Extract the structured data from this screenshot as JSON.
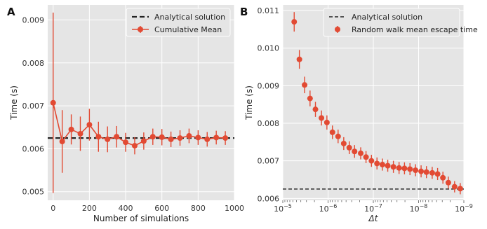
{
  "colors": {
    "background": "#e5e5e5",
    "grid": "#ffffff",
    "series": "#e24a33",
    "reference": "#222222"
  },
  "chart_data": [
    {
      "panel_label": "A",
      "type": "line",
      "xlabel": "Number of simulations",
      "ylabel": "Time (s)",
      "xlim": [
        -30,
        1000
      ],
      "ylim": [
        0.0048,
        0.00935
      ],
      "xticks": [
        0,
        200,
        400,
        600,
        800,
        1000
      ],
      "xtick_labels": [
        "0",
        "200",
        "400",
        "600",
        "800",
        "1000"
      ],
      "yticks": [
        0.005,
        0.006,
        0.007,
        0.008,
        0.009
      ],
      "ytick_labels": [
        "0.005",
        "0.006",
        "0.007",
        "0.008",
        "0.009"
      ],
      "grid": true,
      "legend_position": "top-right",
      "reference_line": {
        "name": "Analytical solution",
        "value": 0.00625,
        "style": "dashed"
      },
      "series": [
        {
          "name": "Cumulative Mean",
          "x": [
            0,
            50,
            100,
            150,
            200,
            250,
            300,
            350,
            400,
            450,
            500,
            550,
            600,
            650,
            700,
            750,
            800,
            850,
            900,
            950
          ],
          "y": [
            0.00707,
            0.00617,
            0.00645,
            0.00635,
            0.00656,
            0.00628,
            0.00622,
            0.00628,
            0.00615,
            0.00607,
            0.00618,
            0.00628,
            0.00627,
            0.00622,
            0.00625,
            0.0063,
            0.00626,
            0.00622,
            0.00626,
            0.00625
          ],
          "yerr": [
            0.0021,
            0.00073,
            0.00035,
            0.0004,
            0.00037,
            0.00035,
            0.0003,
            0.00025,
            0.00022,
            0.0002,
            0.0002,
            0.00019,
            0.00019,
            0.00018,
            0.00018,
            0.00017,
            0.00017,
            0.00017,
            0.00016,
            0.00016
          ]
        }
      ]
    },
    {
      "panel_label": "B",
      "type": "scatter",
      "xlabel": "Δt",
      "ylabel": "Time (s)",
      "x_scale": "log",
      "x_inverted": true,
      "xlim": [
        1e-05,
        1e-09
      ],
      "ylim": [
        0.00595,
        0.01115
      ],
      "xticks": [
        1e-05,
        1e-06,
        1e-07,
        1e-08,
        1e-09
      ],
      "xtick_labels": [
        {
          "base": "10",
          "exp": "−5"
        },
        {
          "base": "10",
          "exp": "−6"
        },
        {
          "base": "10",
          "exp": "−7"
        },
        {
          "base": "10",
          "exp": "−8"
        },
        {
          "base": "10",
          "exp": "−9"
        }
      ],
      "yticks": [
        0.006,
        0.007,
        0.008,
        0.009,
        0.01,
        0.011
      ],
      "ytick_labels": [
        "0.006",
        "0.007",
        "0.008",
        "0.009",
        "0.010",
        "0.011"
      ],
      "grid": true,
      "legend_position": "top-right",
      "reference_line": {
        "name": "Analytical solution",
        "value": 0.00625,
        "style": "dashed"
      },
      "series": [
        {
          "name": "Random walk mean escape time",
          "x": [
            5.6e-06,
            4.3e-06,
            3.3e-06,
            2.5e-06,
            1.9e-06,
            1.4e-06,
            1.06e-06,
            8e-07,
            6e-07,
            4.5e-07,
            3.4e-07,
            2.6e-07,
            1.9e-07,
            1.45e-07,
            1.1e-07,
            8.3e-08,
            6.3e-08,
            4.8e-08,
            3.6e-08,
            2.7e-08,
            2.05e-08,
            1.55e-08,
            1.17e-08,
            8.8e-09,
            6.7e-09,
            5e-09,
            3.8e-09,
            2.9e-09,
            2.2e-09,
            1.6e-09,
            1.2e-09
          ],
          "y": [
            0.0107,
            0.0097,
            0.00902,
            0.00866,
            0.00837,
            0.00814,
            0.00802,
            0.00776,
            0.00765,
            0.00746,
            0.00735,
            0.00725,
            0.0072,
            0.0071,
            0.007,
            0.00693,
            0.0069,
            0.00687,
            0.00684,
            0.00681,
            0.0068,
            0.00678,
            0.00675,
            0.00672,
            0.0067,
            0.00668,
            0.00665,
            0.00655,
            0.00642,
            0.00631,
            0.00626
          ],
          "yerr": [
            0.00026,
            0.00025,
            0.00022,
            0.00021,
            0.0002,
            0.0002,
            0.00019,
            0.00018,
            0.00018,
            0.00017,
            0.00017,
            0.00017,
            0.00016,
            0.00016,
            0.00016,
            0.00016,
            0.00016,
            0.00016,
            0.00016,
            0.00016,
            0.00016,
            0.00016,
            0.00016,
            0.00016,
            0.00016,
            0.00016,
            0.00016,
            0.00016,
            0.00016,
            0.00015,
            0.00015
          ]
        }
      ]
    }
  ]
}
